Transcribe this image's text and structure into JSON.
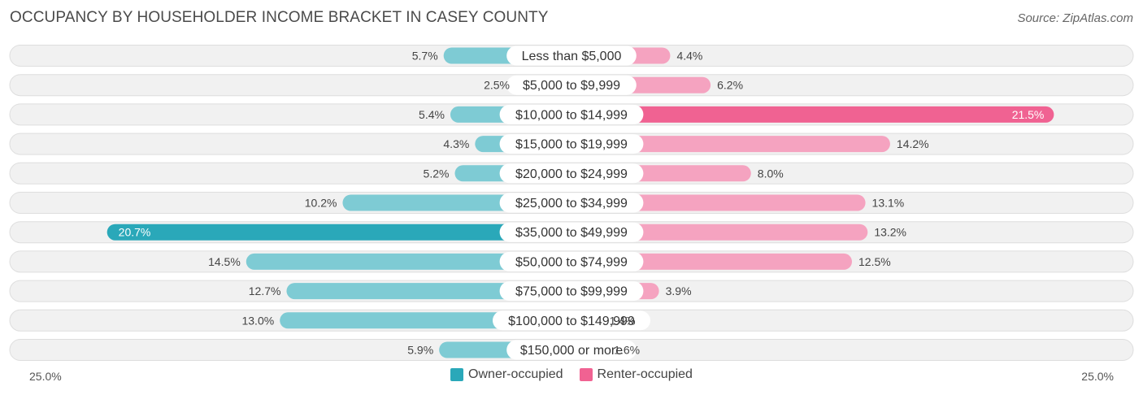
{
  "header": {
    "title": "OCCUPANCY BY HOUSEHOLDER INCOME BRACKET IN CASEY COUNTY",
    "source": "Source: ZipAtlas.com"
  },
  "colors": {
    "owner": "#7ecbd4",
    "owner_strong": "#2aa8b9",
    "renter": "#f5a3c0",
    "renter_strong": "#f06292",
    "row_bg": "#efefef"
  },
  "chart_data": {
    "type": "bar",
    "orientation": "horizontal-diverging",
    "title": "OCCUPANCY BY HOUSEHOLDER INCOME BRACKET IN CASEY COUNTY",
    "categories": [
      "Less than $5,000",
      "$5,000 to $9,999",
      "$10,000 to $14,999",
      "$15,000 to $19,999",
      "$20,000 to $24,999",
      "$25,000 to $34,999",
      "$35,000 to $49,999",
      "$50,000 to $74,999",
      "$75,000 to $99,999",
      "$100,000 to $149,999",
      "$150,000 or more"
    ],
    "series": [
      {
        "name": "Owner-occupied",
        "values": [
          5.7,
          2.5,
          5.4,
          4.3,
          5.2,
          10.2,
          20.7,
          14.5,
          12.7,
          13.0,
          5.9
        ],
        "labels": [
          "5.7%",
          "2.5%",
          "5.4%",
          "4.3%",
          "5.2%",
          "10.2%",
          "20.7%",
          "14.5%",
          "12.7%",
          "13.0%",
          "5.9%"
        ]
      },
      {
        "name": "Renter-occupied",
        "values": [
          4.4,
          6.2,
          21.5,
          14.2,
          8.0,
          13.1,
          13.2,
          12.5,
          3.9,
          1.4,
          1.6
        ],
        "labels": [
          "4.4%",
          "6.2%",
          "21.5%",
          "14.2%",
          "8.0%",
          "13.1%",
          "13.2%",
          "12.5%",
          "3.9%",
          "1.4%",
          "1.6%"
        ]
      }
    ],
    "xlim": [
      -25,
      25
    ],
    "axis_labels": {
      "left": "25.0%",
      "right": "25.0%"
    },
    "legend": {
      "position": "bottom-center"
    }
  }
}
